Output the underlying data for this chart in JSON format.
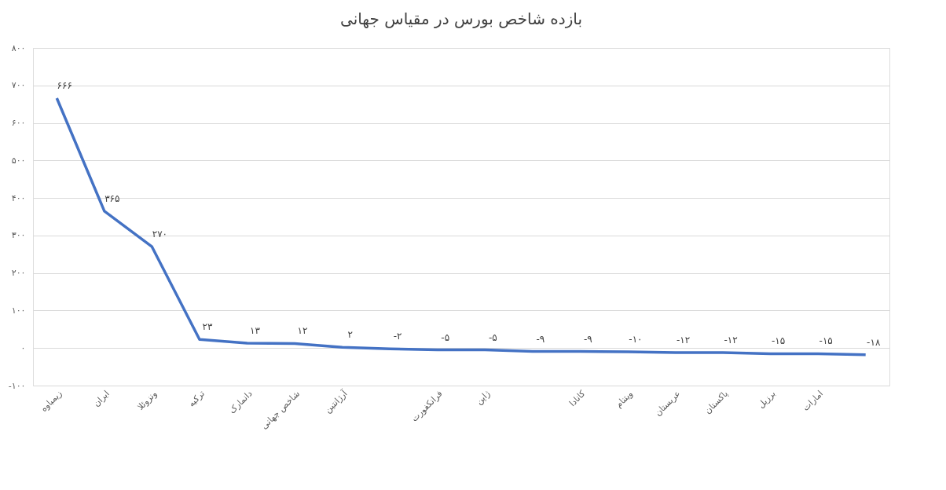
{
  "chart_data": {
    "type": "line",
    "title": "بازده شاخص بورس در مقیاس جهانی",
    "categories": [
      "زیمباوه",
      "ایران",
      "ونزوئلا",
      "ترکیه",
      "دانمارک",
      "شاخص جهانی",
      "آرژانتین",
      null,
      "فرانکفورت",
      "ژاپن",
      null,
      "کانادا",
      "ویتنام",
      "عربستان",
      "پاکستان",
      "برزیل",
      "امارات",
      null
    ],
    "series": [
      {
        "color": "#4472c4",
        "values": [
          666,
          365,
          270,
          23,
          13,
          12,
          2,
          -2,
          -5,
          -5,
          -9,
          -9,
          -10,
          -12,
          -12,
          -15,
          -15,
          -18
        ],
        "value_labels": [
          "۶۶۶",
          "۳۶۵",
          "۲۷۰",
          "۲۳",
          "۱۳",
          "۱۲",
          "۲",
          "-۲",
          "-۵",
          "-۵",
          "-۹",
          "-۹",
          "-۱۰",
          "-۱۲",
          "-۱۲",
          "-۱۵",
          "-۱۵",
          "-۱۸"
        ]
      }
    ],
    "ylim": [
      -100,
      800
    ],
    "yticks": [
      {
        "value": -100,
        "label": "-۱۰۰"
      },
      {
        "value": 0,
        "label": "۰"
      },
      {
        "value": 100,
        "label": "۱۰۰"
      },
      {
        "value": 200,
        "label": "۲۰۰"
      },
      {
        "value": 300,
        "label": "۳۰۰"
      },
      {
        "value": 400,
        "label": "۴۰۰"
      },
      {
        "value": 500,
        "label": "۵۰۰"
      },
      {
        "value": 600,
        "label": "۶۰۰"
      },
      {
        "value": 700,
        "label": "۷۰۰"
      },
      {
        "value": 800,
        "label": "۸۰۰"
      }
    ],
    "grid": "y",
    "marker": "none",
    "line_style": "solid"
  }
}
